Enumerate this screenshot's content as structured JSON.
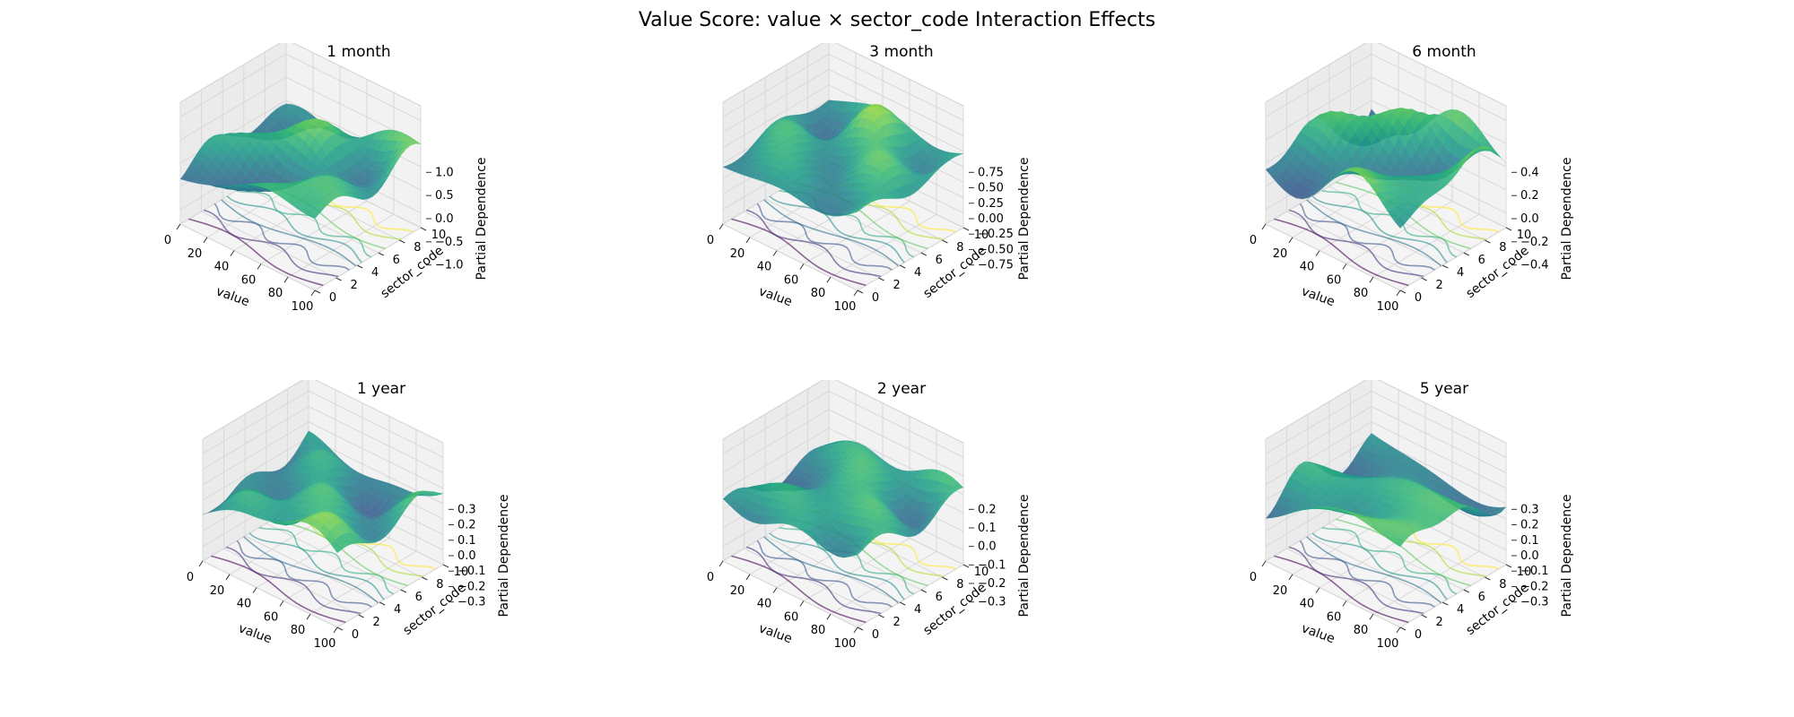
{
  "title": "Value Score: value × sector_code Interaction Effects",
  "chart_data": [
    {
      "type": "surface",
      "title": "1 month",
      "xlabel": "value",
      "ylabel": "sector_code",
      "zlabel": "Partial Dependence",
      "xlim": [
        0,
        100
      ],
      "ylim": [
        0,
        10
      ],
      "zlim": [
        -1.0,
        1.0
      ],
      "xticks": [
        0,
        20,
        40,
        60,
        80,
        100
      ],
      "yticks": [
        0,
        2,
        4,
        6,
        8,
        10
      ],
      "zticks": [
        "−1.0",
        "−0.5",
        "0.0",
        "0.5",
        "1.0"
      ],
      "colormap": "viridis",
      "contours_on_floor": true,
      "z_range": [
        -1.0,
        1.0
      ],
      "seed": 1
    },
    {
      "type": "surface",
      "title": "3 month",
      "xlabel": "value",
      "ylabel": "sector_code",
      "zlabel": "Partial Dependence",
      "xlim": [
        0,
        100
      ],
      "ylim": [
        0,
        10
      ],
      "zlim": [
        -0.75,
        0.75
      ],
      "xticks": [
        0,
        20,
        40,
        60,
        80,
        100
      ],
      "yticks": [
        0,
        2,
        4,
        6,
        8,
        10
      ],
      "zticks": [
        "−0.75",
        "−0.50",
        "−0.25",
        "0.00",
        "0.25",
        "0.50",
        "0.75"
      ],
      "colormap": "viridis",
      "contours_on_floor": true,
      "z_range": [
        -0.75,
        0.85
      ],
      "seed": 2
    },
    {
      "type": "surface",
      "title": "6 month",
      "xlabel": "value",
      "ylabel": "sector_code",
      "zlabel": "Partial Dependence",
      "xlim": [
        0,
        100
      ],
      "ylim": [
        0,
        10
      ],
      "zlim": [
        -0.4,
        0.4
      ],
      "xticks": [
        0,
        20,
        40,
        60,
        80,
        100
      ],
      "yticks": [
        0,
        2,
        4,
        6,
        8,
        10
      ],
      "zticks": [
        "−0.4",
        "−0.2",
        "0.0",
        "0.2",
        "0.4"
      ],
      "colormap": "viridis",
      "contours_on_floor": true,
      "z_range": [
        -0.45,
        0.5
      ],
      "seed": 3
    },
    {
      "type": "surface",
      "title": "1 year",
      "xlabel": "value",
      "ylabel": "sector_code",
      "zlabel": "Partial Dependence",
      "xlim": [
        0,
        100
      ],
      "ylim": [
        0,
        10
      ],
      "zlim": [
        -0.3,
        0.3
      ],
      "xticks": [
        0,
        20,
        40,
        60,
        80,
        100
      ],
      "yticks": [
        0,
        2,
        4,
        6,
        8,
        10
      ],
      "zticks": [
        "−0.3",
        "−0.2",
        "−0.1",
        "0.0",
        "0.1",
        "0.2",
        "0.3"
      ],
      "colormap": "viridis",
      "contours_on_floor": true,
      "z_range": [
        -0.35,
        0.35
      ],
      "seed": 4
    },
    {
      "type": "surface",
      "title": "2 year",
      "xlabel": "value",
      "ylabel": "sector_code",
      "zlabel": "Partial Dependence",
      "xlim": [
        0,
        100
      ],
      "ylim": [
        0,
        10
      ],
      "zlim": [
        -0.3,
        0.2
      ],
      "xticks": [
        0,
        20,
        40,
        60,
        80,
        100
      ],
      "yticks": [
        0,
        2,
        4,
        6,
        8,
        10
      ],
      "zticks": [
        "−0.3",
        "−0.2",
        "−0.1",
        "0.0",
        "0.1",
        "0.2"
      ],
      "colormap": "viridis",
      "contours_on_floor": true,
      "z_range": [
        -0.3,
        0.22
      ],
      "seed": 5
    },
    {
      "type": "surface",
      "title": "5 year",
      "xlabel": "value",
      "ylabel": "sector_code",
      "zlabel": "Partial Dependence",
      "xlim": [
        0,
        100
      ],
      "ylim": [
        0,
        10
      ],
      "zlim": [
        -0.3,
        0.3
      ],
      "xticks": [
        0,
        20,
        40,
        60,
        80,
        100
      ],
      "yticks": [
        0,
        2,
        4,
        6,
        8,
        10
      ],
      "zticks": [
        "−0.3",
        "−0.2",
        "−0.1",
        "0.0",
        "0.1",
        "0.2",
        "0.3"
      ],
      "colormap": "viridis",
      "contours_on_floor": true,
      "z_range": [
        -0.32,
        0.35
      ],
      "seed": 6
    }
  ]
}
